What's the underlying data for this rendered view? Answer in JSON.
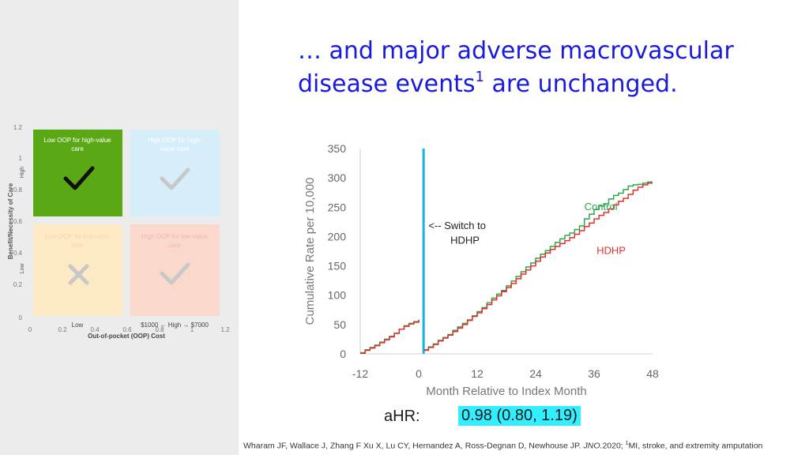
{
  "title": {
    "line1": "… and major adverse macrovascular",
    "line2_pre": "disease events",
    "line2_sup": "1",
    "line2_post": " are unchanged."
  },
  "quadrant": {
    "y_axis_label": "Benefit/Necessity of Care",
    "y_axis_high": "High",
    "y_axis_low": "Low",
    "x_axis_label": "Out-of-pocket (OOP) Cost",
    "x_axis_low": "Low",
    "x_axis_high": "$1000 ← High → $7000",
    "y_ticks": [
      "1.2",
      "1",
      "0.8",
      "0.6",
      "0.4",
      "0.2",
      "0"
    ],
    "x_ticks": [
      "0",
      "0.2",
      "0.4",
      "0.6",
      "0.8",
      "1",
      "1.2"
    ],
    "cells": {
      "top_left": {
        "label_l1": "Low OOP for high-value",
        "label_l2": "care",
        "color": "#5aa816"
      },
      "top_right": {
        "label_l1": "High OOP for high-",
        "label_l2": "value care",
        "color": "#d6eefa"
      },
      "bottom_left": {
        "label_l1": "Low OOP for low-value",
        "label_l2": "care",
        "color": "#fde9c4"
      },
      "bottom_right": {
        "label_l1": "High OOP for low-value",
        "label_l2": "care",
        "color": "#fbd8cc"
      }
    }
  },
  "chart_data": {
    "type": "line",
    "xlabel": "Month Relative to Index Month",
    "ylabel": "Cumulative Rate per 10,000",
    "xlim": [
      -12,
      48
    ],
    "ylim": [
      0,
      350
    ],
    "x_ticks": [
      -12,
      0,
      12,
      24,
      36,
      48
    ],
    "y_ticks": [
      0,
      50,
      100,
      150,
      200,
      250,
      300,
      350
    ],
    "switch_month": 1,
    "switch_label_l1": "<-- Switch to",
    "switch_label_l2": "HDHP",
    "switch_color": "#1ab2e0",
    "series": [
      {
        "name": "Control",
        "color": "#2aa84a",
        "x": [
          -12,
          -11,
          -10,
          -9,
          -8,
          -7,
          -6,
          -5,
          -4,
          -3,
          -2,
          -1,
          0,
          1,
          2,
          3,
          4,
          5,
          6,
          7,
          8,
          9,
          10,
          11,
          12,
          13,
          14,
          15,
          16,
          17,
          18,
          19,
          20,
          21,
          22,
          23,
          24,
          25,
          26,
          27,
          28,
          29,
          30,
          31,
          32,
          33,
          34,
          35,
          36,
          37,
          38,
          39,
          40,
          41,
          42,
          43,
          44,
          45,
          46,
          47,
          48
        ],
        "y": [
          2,
          7,
          11,
          15,
          20,
          25,
          30,
          35,
          42,
          48,
          52,
          55,
          58,
          7,
          12,
          17,
          23,
          28,
          33,
          40,
          46,
          52,
          58,
          65,
          72,
          79,
          87,
          95,
          102,
          108,
          116,
          124,
          132,
          140,
          148,
          155,
          163,
          170,
          176,
          183,
          190,
          196,
          202,
          206,
          212,
          218,
          230,
          238,
          246,
          252,
          256,
          264,
          270,
          274,
          280,
          286,
          288,
          289,
          291,
          293,
          293
        ]
      },
      {
        "name": "HDHP",
        "color": "#e03030",
        "x": [
          -12,
          -11,
          -10,
          -9,
          -8,
          -7,
          -6,
          -5,
          -4,
          -3,
          -2,
          -1,
          0,
          1,
          2,
          3,
          4,
          5,
          6,
          7,
          8,
          9,
          10,
          11,
          12,
          13,
          14,
          15,
          16,
          17,
          18,
          19,
          20,
          21,
          22,
          23,
          24,
          25,
          26,
          27,
          28,
          29,
          30,
          31,
          32,
          33,
          34,
          35,
          36,
          37,
          38,
          39,
          40,
          41,
          42,
          43,
          44,
          45,
          46,
          47,
          48
        ],
        "y": [
          1,
          6,
          10,
          14,
          19,
          24,
          29,
          35,
          42,
          47,
          51,
          54,
          58,
          6,
          11,
          16,
          22,
          27,
          32,
          38,
          44,
          50,
          57,
          64,
          70,
          77,
          84,
          92,
          99,
          106,
          113,
          120,
          128,
          136,
          143,
          150,
          158,
          165,
          172,
          178,
          183,
          188,
          193,
          198,
          204,
          210,
          217,
          223,
          230,
          236,
          241,
          247,
          254,
          260,
          265,
          272,
          279,
          284,
          288,
          291,
          291
        ]
      }
    ],
    "annotation": {
      "label": "aHR:",
      "value": "0.98 (0.80, 1.19)"
    }
  },
  "citation": {
    "pre": "Wharam JF, Wallace J, Zhang F Xu X, Lu CY, Hernandez A, Ross-Degnan D, Newhouse JP. ",
    "journal": "JNO.",
    "year": "2020; ",
    "sup": "1",
    "post": "MI, stroke, and extremity amputation"
  }
}
